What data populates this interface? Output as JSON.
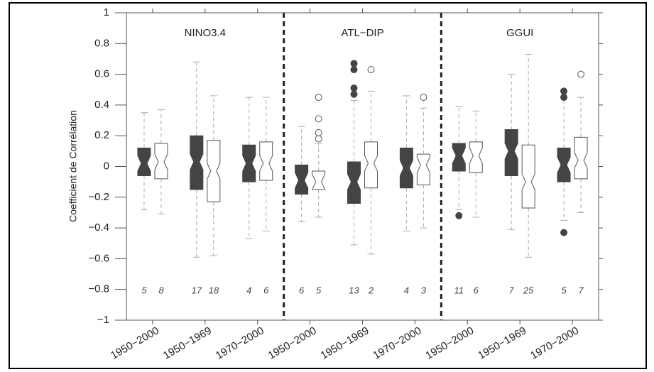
{
  "chart_data": {
    "type": "box",
    "y_label": "Coefficient de Corrélation",
    "panels": [
      "NINO3.4",
      "ATL−DIP",
      "GGUI"
    ],
    "categories": [
      "1950−2000",
      "1950−1969",
      "1970−2000",
      "1950−2000",
      "1950−1969",
      "1970−2000",
      "1950−2000",
      "1950−1969",
      "1970−2000"
    ],
    "ylim": [
      -1,
      1
    ],
    "yticks": [
      {
        "value": -1,
        "label": "−1"
      },
      {
        "value": -0.8,
        "label": "−0.8"
      },
      {
        "value": -0.6,
        "label": "−0.6"
      },
      {
        "value": -0.4,
        "label": "−0.4"
      },
      {
        "value": -0.2,
        "label": "−0.2"
      },
      0,
      0.2,
      0.4,
      0.6,
      0.8,
      1
    ],
    "series": [
      {
        "color": "#444444",
        "low": [
          -0.28,
          -0.59,
          -0.47,
          -0.36,
          -0.51,
          -0.42,
          -0.28,
          -0.41,
          -0.35
        ],
        "q1": [
          -0.06,
          -0.15,
          -0.1,
          -0.18,
          -0.24,
          -0.14,
          -0.03,
          -0.06,
          -0.1
        ],
        "median": [
          0.02,
          0.03,
          0.02,
          -0.09,
          -0.1,
          -0.01,
          0.07,
          0.1,
          0.01
        ],
        "q3": [
          0.12,
          0.2,
          0.14,
          0.01,
          0.03,
          0.12,
          0.15,
          0.24,
          0.12
        ],
        "high": [
          0.35,
          0.68,
          0.45,
          0.26,
          0.43,
          0.46,
          0.39,
          0.6,
          0.45
        ],
        "outliers": [
          [],
          [],
          [],
          [],
          [
            0.67,
            0.63,
            0.51,
            0.47
          ],
          [],
          [
            -0.32
          ],
          [],
          [
            0.49,
            0.45,
            -0.43
          ]
        ],
        "n": [
          5,
          17,
          4,
          6,
          13,
          4,
          11,
          7,
          5
        ]
      },
      {
        "color": "#ffffff",
        "low": [
          -0.31,
          -0.58,
          -0.42,
          -0.33,
          -0.57,
          -0.4,
          -0.33,
          -0.59,
          -0.3
        ],
        "q1": [
          -0.08,
          -0.23,
          -0.09,
          -0.15,
          -0.14,
          -0.12,
          -0.04,
          -0.27,
          -0.08
        ],
        "median": [
          0.03,
          -0.03,
          0.02,
          -0.1,
          0.02,
          0.01,
          0.07,
          -0.1,
          0.04
        ],
        "q3": [
          0.15,
          0.17,
          0.16,
          -0.03,
          0.16,
          0.08,
          0.16,
          0.14,
          0.19
        ],
        "high": [
          0.37,
          0.46,
          0.45,
          0.15,
          0.49,
          0.38,
          0.36,
          0.73,
          0.45
        ],
        "outliers": [
          [],
          [],
          [],
          [
            0.18,
            0.22,
            0.31,
            0.45
          ],
          [
            0.63
          ],
          [
            0.45
          ],
          [],
          [],
          [
            0.6
          ]
        ],
        "n": [
          8,
          18,
          6,
          5,
          2,
          3,
          6,
          25,
          7
        ]
      }
    ]
  }
}
